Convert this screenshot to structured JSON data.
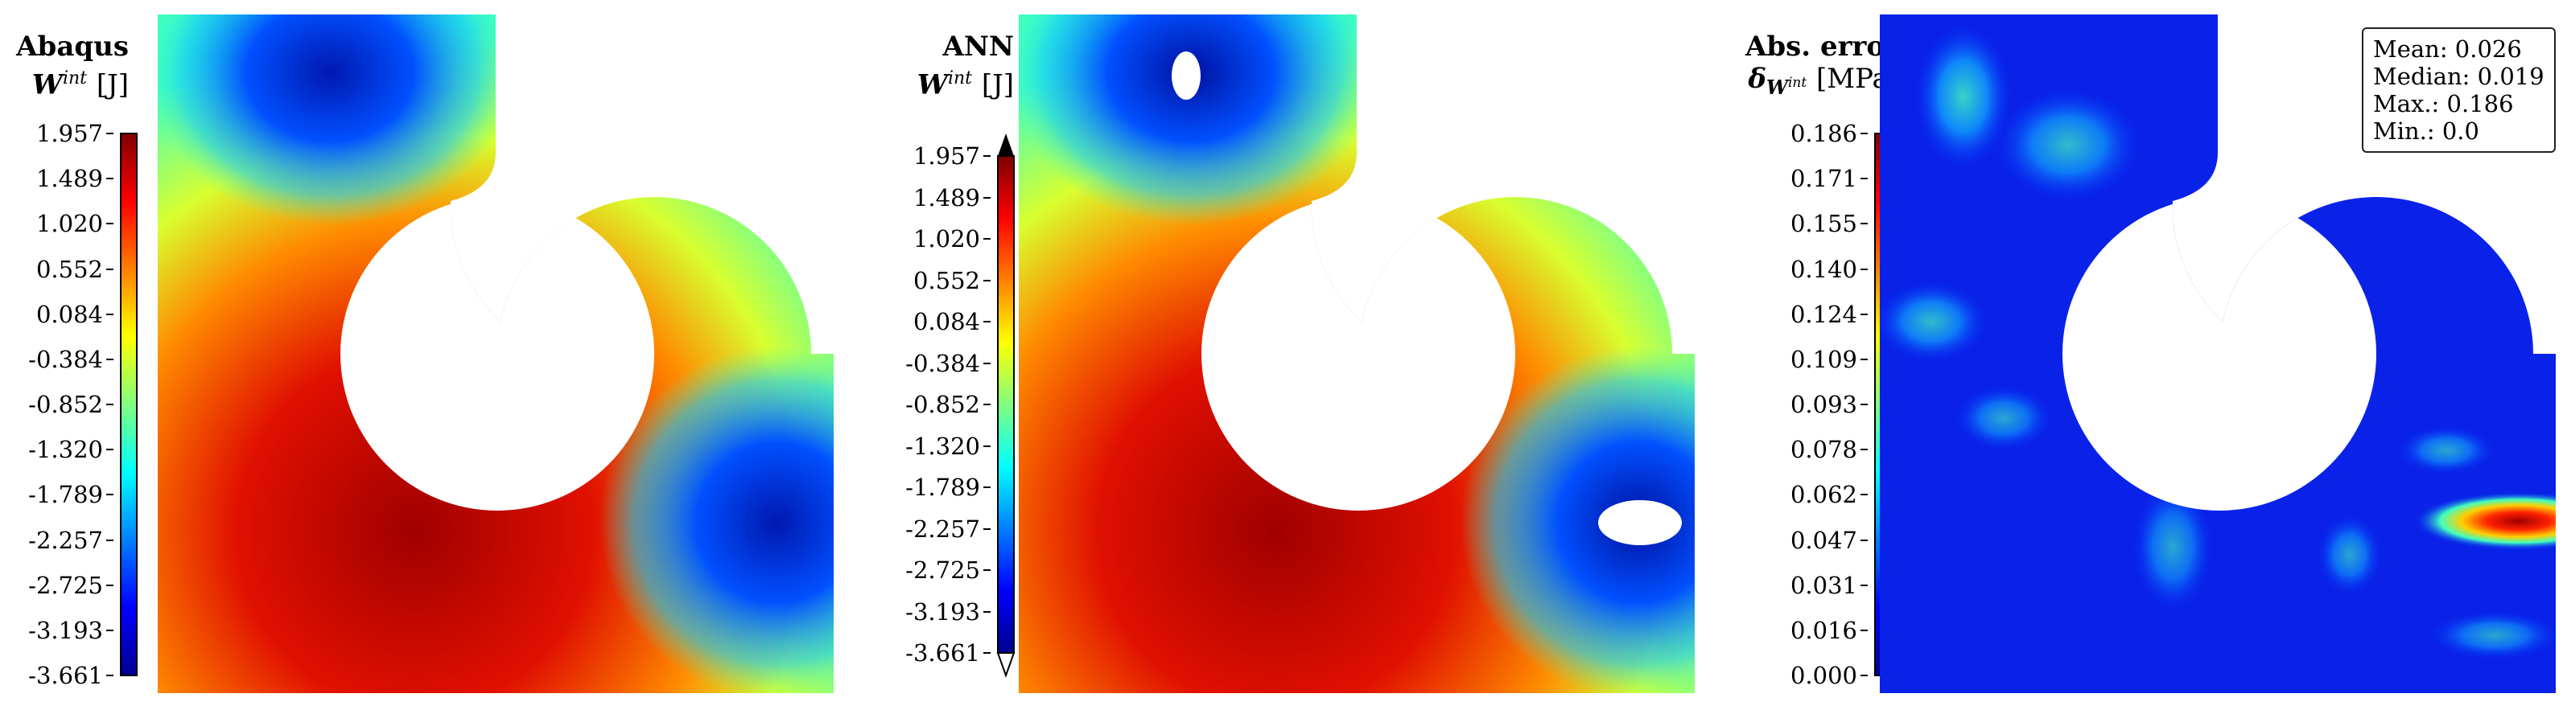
{
  "panels": [
    {
      "title": "Abaqus",
      "quantity": "W",
      "superscript": "int",
      "unit": "[J]",
      "colorbar_ticks": [
        "1.957",
        "1.489",
        "1.020",
        "0.552",
        "0.084",
        "-0.384",
        "-0.852",
        "-1.320",
        "-1.789",
        "-2.257",
        "-2.725",
        "-3.193",
        "-3.661"
      ],
      "extend_arrows": false
    },
    {
      "title": "ANN",
      "quantity": "W",
      "superscript": "int",
      "unit": "[J]",
      "colorbar_ticks": [
        "1.957",
        "1.489",
        "1.020",
        "0.552",
        "0.084",
        "-0.384",
        "-0.852",
        "-1.320",
        "-1.789",
        "-2.257",
        "-2.725",
        "-3.193",
        "-3.661"
      ],
      "extend_arrows": true
    },
    {
      "title": "Abs. error",
      "quantity": "δ",
      "subscript": "W",
      "subsuperscript": "int",
      "unit": "[MPa]",
      "colorbar_ticks": [
        "0.186",
        "0.171",
        "0.155",
        "0.140",
        "0.124",
        "0.109",
        "0.093",
        "0.078",
        "0.062",
        "0.047",
        "0.031",
        "0.016",
        "0.000"
      ],
      "extend_arrows": false,
      "stats": {
        "mean": "Mean: 0.026",
        "median": "Median: 0.019",
        "max": "Max.: 0.186",
        "min": "Min.: 0.0"
      }
    }
  ],
  "chart_data": [
    {
      "type": "heatmap",
      "title": "Abaqus",
      "colorbar_label": "W^int [J]",
      "colormap": "jet",
      "range": [
        -3.661,
        1.957
      ]
    },
    {
      "type": "heatmap",
      "title": "ANN",
      "colorbar_label": "W^int [J]",
      "colormap": "jet",
      "range": [
        -3.661,
        1.957
      ],
      "colorbar_extend": "both"
    },
    {
      "type": "heatmap",
      "title": "Abs. error",
      "colorbar_label": "δ_{W^int} [MPa]",
      "colormap": "jet",
      "range": [
        0.0,
        0.186
      ],
      "statistics": {
        "mean": 0.026,
        "median": 0.019,
        "max": 0.186,
        "min": 0.0
      }
    }
  ]
}
